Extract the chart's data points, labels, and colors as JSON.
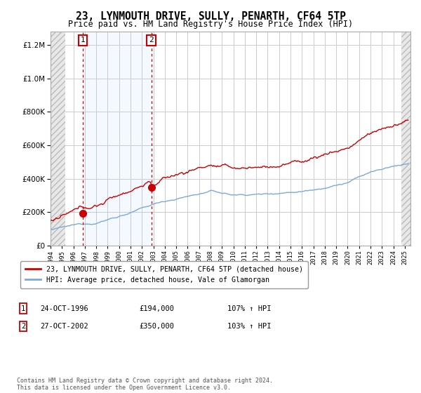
{
  "title": "23, LYNMOUTH DRIVE, SULLY, PENARTH, CF64 5TP",
  "subtitle": "Price paid vs. HM Land Registry's House Price Index (HPI)",
  "legend_line1": "23, LYNMOUTH DRIVE, SULLY, PENARTH, CF64 5TP (detached house)",
  "legend_line2": "HPI: Average price, detached house, Vale of Glamorgan",
  "purchase1_date": 1996.82,
  "purchase1_price": 194000,
  "purchase1_label": "1",
  "purchase1_text": "24-OCT-1996",
  "purchase1_amount": "£194,000",
  "purchase1_hpi": "107% ↑ HPI",
  "purchase2_date": 2002.82,
  "purchase2_price": 350000,
  "purchase2_label": "2",
  "purchase2_text": "27-OCT-2002",
  "purchase2_amount": "£350,000",
  "purchase2_hpi": "103% ↑ HPI",
  "xmin": 1994.0,
  "xmax": 2025.5,
  "ymin": 0,
  "ymax": 1280000,
  "hatch_left_end": 1995.3,
  "hatch_right_start": 2024.7,
  "footer": "Contains HM Land Registry data © Crown copyright and database right 2024.\nThis data is licensed under the Open Government Licence v3.0.",
  "bg_color": "#ffffff",
  "grid_color": "#cccccc",
  "red_color": "#cc0000",
  "blue_color": "#7aaadd"
}
